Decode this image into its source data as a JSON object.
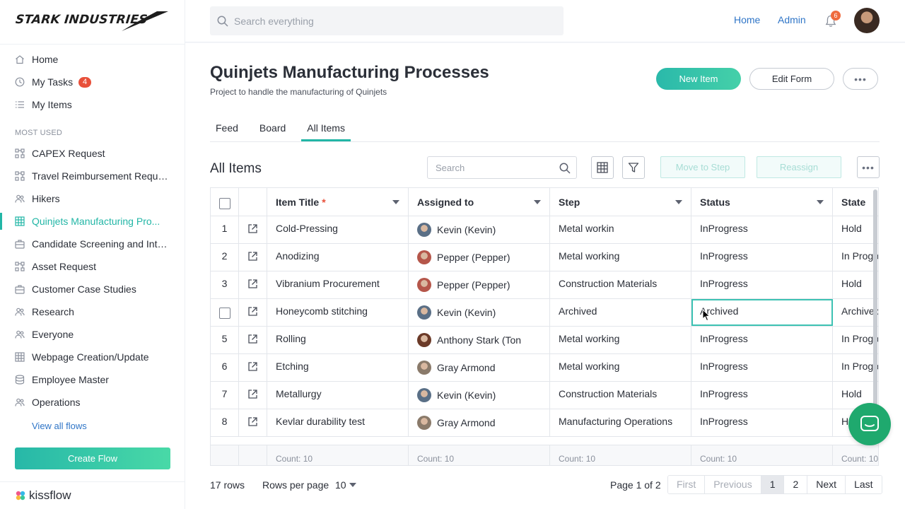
{
  "brand": {
    "logo_text": "STARK INDUSTRIES",
    "footer_logo": "kissflow"
  },
  "sidebar": {
    "items": [
      {
        "label": "Home",
        "icon": "home-icon"
      },
      {
        "label": "My Tasks",
        "icon": "clock-icon",
        "badge": "4"
      },
      {
        "label": "My Items",
        "icon": "list-icon"
      }
    ],
    "most_used_label": "MOST USED",
    "flows": [
      {
        "label": "CAPEX Request",
        "icon": "process-icon"
      },
      {
        "label": "Travel Reimbursement Reque...",
        "icon": "process-icon"
      },
      {
        "label": "Hikers",
        "icon": "people-icon"
      },
      {
        "label": "Quinjets Manufacturing Pro...",
        "icon": "grid-icon",
        "active": true
      },
      {
        "label": "Candidate Screening and Inte...",
        "icon": "briefcase-icon"
      },
      {
        "label": "Asset Request",
        "icon": "process-icon"
      },
      {
        "label": "Customer Case Studies",
        "icon": "briefcase-icon"
      },
      {
        "label": "Research",
        "icon": "people-icon"
      },
      {
        "label": "Everyone",
        "icon": "people-icon"
      },
      {
        "label": "Webpage Creation/Update",
        "icon": "grid-icon"
      },
      {
        "label": "Employee Master",
        "icon": "database-icon"
      },
      {
        "label": "Operations",
        "icon": "people-icon"
      }
    ],
    "view_all": "View all flows",
    "create_flow": "Create Flow"
  },
  "header": {
    "search_placeholder": "Search everything",
    "home_link": "Home",
    "admin_link": "Admin",
    "notification_count": "6"
  },
  "page": {
    "title": "Quinjets Manufacturing Processes",
    "subtitle": "Project to handle the manufacturing of Quinjets",
    "new_item": "New Item",
    "edit_form": "Edit Form",
    "more": "•••",
    "tabs": [
      "Feed",
      "Board",
      "All Items"
    ],
    "active_tab": "All Items"
  },
  "list": {
    "title": "All Items",
    "search_placeholder": "Search",
    "move_to_step": "Move to Step",
    "reassign": "Reassign",
    "more": "•••",
    "columns": [
      "Item Title",
      "Assigned to",
      "Step",
      "Status",
      "State"
    ],
    "required_mark": "*",
    "rows": [
      {
        "num": "1",
        "title": "Cold-Pressing",
        "assignee": "Kevin (Kevin)",
        "avatar": "#5a6f86",
        "step": "Metal workin",
        "status": "InProgress",
        "state": "Hold"
      },
      {
        "num": "2",
        "title": "Anodizing",
        "assignee": "Pepper (Pepper)",
        "avatar": "#b5564a",
        "step": "Metal working",
        "status": "InProgress",
        "state": "In Progre"
      },
      {
        "num": "3",
        "title": "Vibranium Procurement",
        "assignee": "Pepper (Pepper)",
        "avatar": "#b5564a",
        "step": "Construction Materials",
        "status": "InProgress",
        "state": "Hold"
      },
      {
        "num": "",
        "title": "Honeycomb stitching",
        "assignee": "Kevin (Kevin)",
        "avatar": "#5a6f86",
        "step": "Archived",
        "status": "Archived",
        "state": "Archivec",
        "checkbox": true,
        "selected": true
      },
      {
        "num": "5",
        "title": "Rolling",
        "assignee": "Anthony Stark (Ton",
        "avatar": "#6b3a28",
        "step": "Metal working",
        "status": "InProgress",
        "state": "In Progre"
      },
      {
        "num": "6",
        "title": "Etching",
        "assignee": "Gray Armond",
        "avatar": "#8a7a6a",
        "step": "Metal working",
        "status": "InProgress",
        "state": "In Progre"
      },
      {
        "num": "7",
        "title": "Metallurgy",
        "assignee": "Kevin (Kevin)",
        "avatar": "#5a6f86",
        "step": "Construction Materials",
        "status": "InProgress",
        "state": "Hold"
      },
      {
        "num": "8",
        "title": "Kevlar durability test",
        "assignee": "Gray Armond",
        "avatar": "#8a7a6a",
        "step": "Manufacturing Operations",
        "status": "InProgress",
        "state": "H"
      }
    ],
    "footer_count": "Count: 10"
  },
  "pagination": {
    "rows": "17 rows",
    "rows_per_page_label": "Rows per page",
    "rows_per_page": "10",
    "page_info": "Page 1 of 2",
    "first": "First",
    "previous": "Previous",
    "page1": "1",
    "page2": "2",
    "next": "Next",
    "last": "Last"
  }
}
